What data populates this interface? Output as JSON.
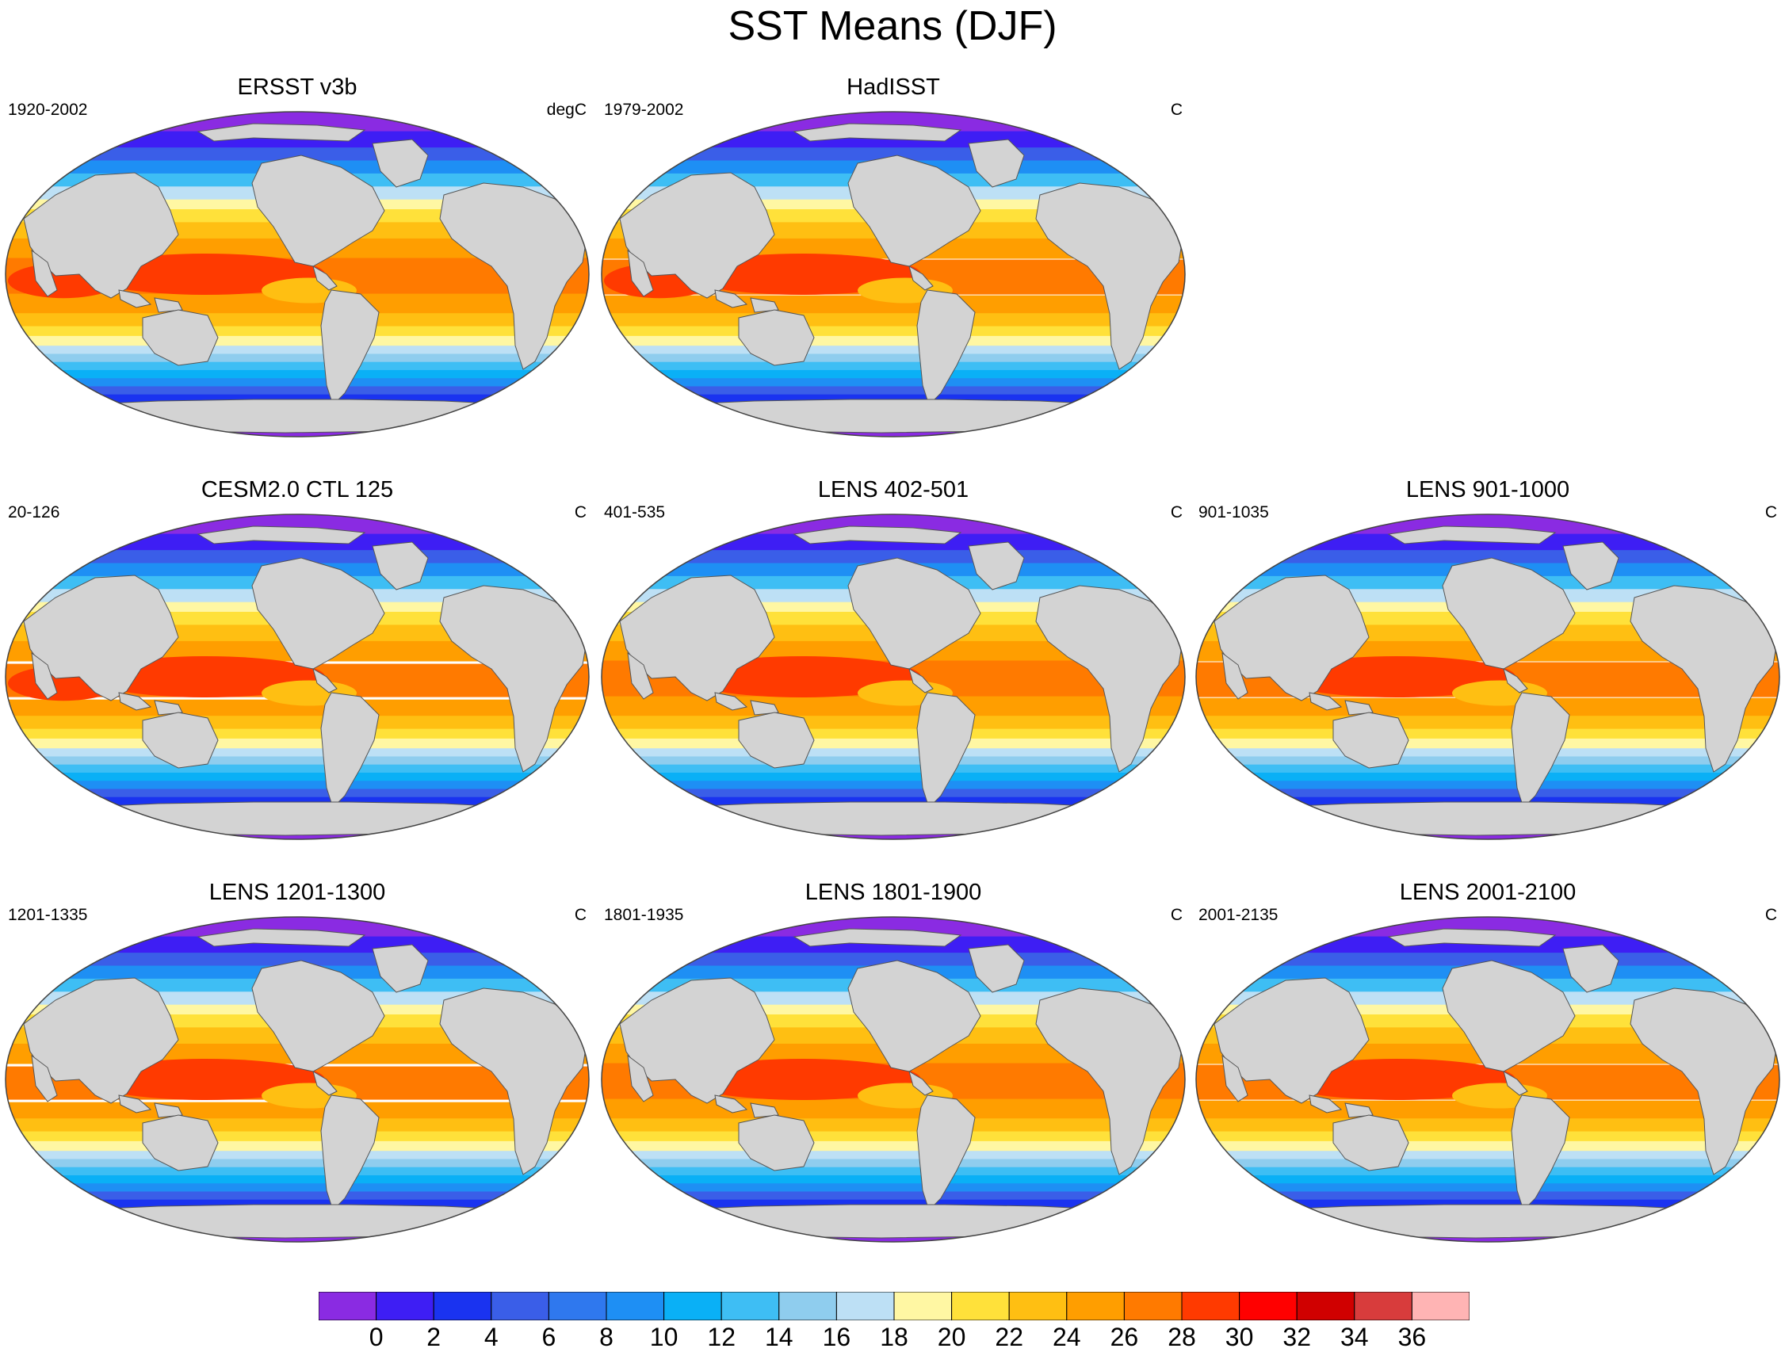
{
  "figure": {
    "title": "SST Means (DJF)"
  },
  "panels": [
    {
      "title": "ERSST v3b",
      "left": "1920-2002",
      "right": "degC"
    },
    {
      "title": "HadISST",
      "left": "1979-2002",
      "right": "C"
    },
    {
      "title": "CESM2.0 CTL 125",
      "left": "20-126",
      "right": "C"
    },
    {
      "title": "LENS 402-501",
      "left": "401-535",
      "right": "C"
    },
    {
      "title": "LENS 901-1000",
      "left": "901-1035",
      "right": "C"
    },
    {
      "title": "LENS 1201-1300",
      "left": "1201-1335",
      "right": "C"
    },
    {
      "title": "LENS 1801-1900",
      "left": "1801-1935",
      "right": "C"
    },
    {
      "title": "LENS 2001-2100",
      "left": "2001-2135",
      "right": "C"
    }
  ],
  "colorbar": {
    "labels": [
      "0",
      "2",
      "4",
      "6",
      "8",
      "10",
      "12",
      "14",
      "16",
      "18",
      "20",
      "22",
      "24",
      "26",
      "28",
      "30",
      "32",
      "34",
      "36"
    ],
    "colors": [
      "#8a2be2",
      "#3e1ef4",
      "#1a33f0",
      "#3a5ee8",
      "#2f78ee",
      "#1e8ff4",
      "#0ab0f6",
      "#3ebef4",
      "#8fcdee",
      "#bde0f5",
      "#fff7a3",
      "#ffe13a",
      "#ffbf12",
      "#ff9e00",
      "#ff7a00",
      "#ff3a00",
      "#ff0000",
      "#d00000",
      "#d83c3c",
      "#ffb4b4"
    ]
  },
  "map": {
    "land_color": "#d3d3d3",
    "outline_color": "#555555"
  }
}
